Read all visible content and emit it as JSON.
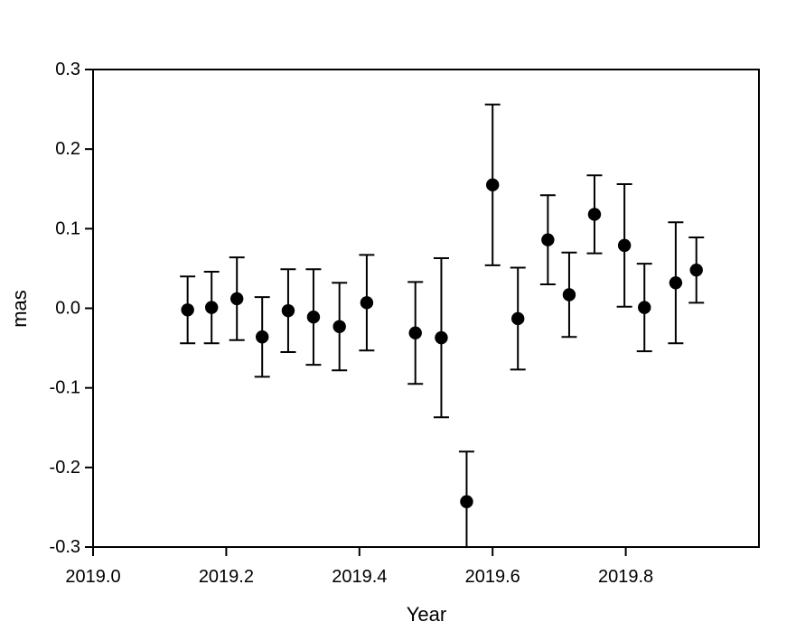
{
  "figure": {
    "background_color": "#ffffff",
    "foreground_color": "#000000"
  },
  "chart_data": {
    "type": "scatter",
    "title": "",
    "xlabel": "Year",
    "ylabel": "mas",
    "xlim": [
      2019.0,
      2020.0
    ],
    "ylim": [
      -0.3,
      0.3
    ],
    "grid": false,
    "legend": false,
    "marker": "filled-circle",
    "marker_color": "#000000",
    "error_bars": true,
    "xticks": [
      {
        "value": 2019.0,
        "label": "2019.0"
      },
      {
        "value": 2019.2,
        "label": "2019.2"
      },
      {
        "value": 2019.4,
        "label": "2019.4"
      },
      {
        "value": 2019.6,
        "label": "2019.6"
      },
      {
        "value": 2019.8,
        "label": "2019.8"
      }
    ],
    "yticks": [
      {
        "value": 0.3,
        "label": "0.3"
      },
      {
        "value": 0.2,
        "label": "0.2"
      },
      {
        "value": 0.1,
        "label": "0.1"
      },
      {
        "value": 0.0,
        "label": "0.0"
      },
      {
        "value": -0.1,
        "label": "-0.1"
      },
      {
        "value": -0.2,
        "label": "-0.2"
      },
      {
        "value": -0.3,
        "label": "-0.3"
      }
    ],
    "points": [
      {
        "x": 2019.142,
        "y": -0.002,
        "err": 0.042
      },
      {
        "x": 2019.178,
        "y": 0.001,
        "err": 0.045
      },
      {
        "x": 2019.216,
        "y": 0.012,
        "err": 0.052
      },
      {
        "x": 2019.254,
        "y": -0.036,
        "err": 0.05
      },
      {
        "x": 2019.293,
        "y": -0.003,
        "err": 0.052
      },
      {
        "x": 2019.331,
        "y": -0.011,
        "err": 0.06
      },
      {
        "x": 2019.37,
        "y": -0.023,
        "err": 0.055
      },
      {
        "x": 2019.411,
        "y": 0.007,
        "err": 0.06
      },
      {
        "x": 2019.484,
        "y": -0.031,
        "err": 0.064
      },
      {
        "x": 2019.523,
        "y": -0.037,
        "err": 0.1
      },
      {
        "x": 2019.561,
        "y": -0.243,
        "err": 0.063
      },
      {
        "x": 2019.6,
        "y": 0.155,
        "err": 0.101
      },
      {
        "x": 2019.638,
        "y": -0.013,
        "err": 0.064
      },
      {
        "x": 2019.683,
        "y": 0.086,
        "err": 0.056
      },
      {
        "x": 2019.715,
        "y": 0.017,
        "err": 0.053
      },
      {
        "x": 2019.753,
        "y": 0.118,
        "err": 0.049
      },
      {
        "x": 2019.798,
        "y": 0.079,
        "err": 0.077
      },
      {
        "x": 2019.828,
        "y": 0.001,
        "err": 0.055
      },
      {
        "x": 2019.875,
        "y": 0.032,
        "err": 0.076
      },
      {
        "x": 2019.906,
        "y": 0.048,
        "err": 0.041
      }
    ]
  }
}
